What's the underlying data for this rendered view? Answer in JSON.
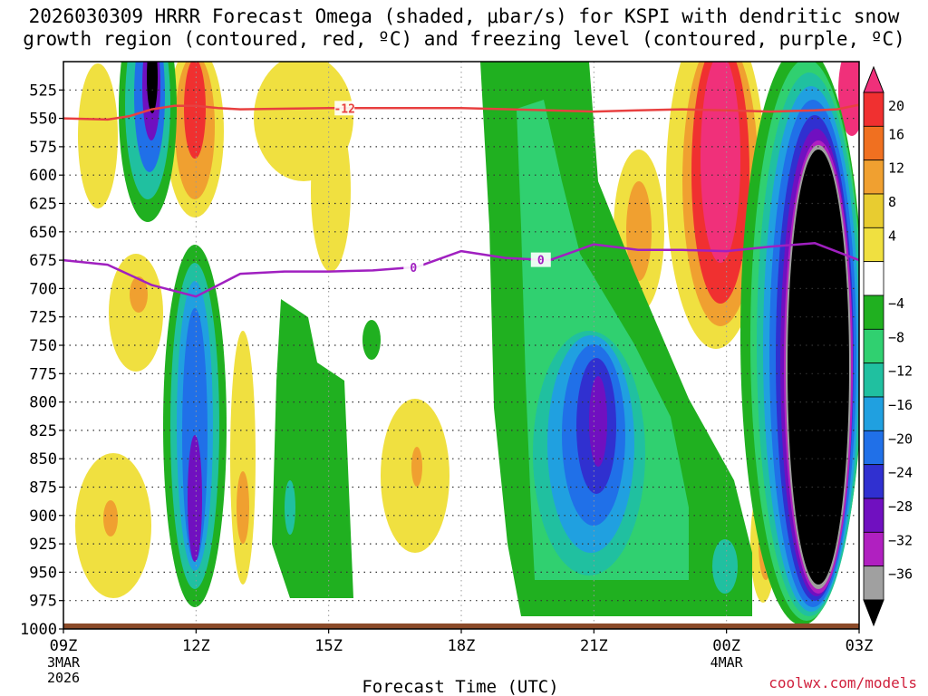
{
  "title_line1": "2026030309 HRRR Forecast Omega (shaded, μbar/s) for KSPI with dendritic snow",
  "title_line2": "growth region (contoured, red, ºC) and freezing level (contoured, purple, ºC)",
  "credit": "coolwx.com/models",
  "chart_data": {
    "type": "heatmap",
    "title": "2026030309 HRRR Forecast Omega (shaded, μbar/s) for KSPI with dendritic snow growth region (contoured, red, ºC) and freezing level (contoured, purple, ºC)",
    "xlabel": "Forecast Time (UTC)",
    "ylabel": "",
    "x_range_hours": [
      0,
      18
    ],
    "x_ticks": [
      {
        "hour": 0,
        "label": "09Z",
        "sub1": "3MAR",
        "sub2": "2026"
      },
      {
        "hour": 3,
        "label": "12Z"
      },
      {
        "hour": 6,
        "label": "15Z"
      },
      {
        "hour": 9,
        "label": "18Z"
      },
      {
        "hour": 12,
        "label": "21Z"
      },
      {
        "hour": 15,
        "label": "00Z",
        "sub1": "4MAR"
      },
      {
        "hour": 18,
        "label": "03Z"
      }
    ],
    "y_range_mb": [
      1000,
      500
    ],
    "y_ticks": [
      "525",
      "550",
      "575",
      "600",
      "625",
      "650",
      "675",
      "700",
      "725",
      "750",
      "775",
      "800",
      "825",
      "850",
      "875",
      "900",
      "925",
      "950",
      "975",
      "1000"
    ],
    "colorbar": {
      "labels": [
        "20",
        "16",
        "12",
        "8",
        "4",
        "−4",
        "−8",
        "−12",
        "−16",
        "−20",
        "−24",
        "−28",
        "−32",
        "−36"
      ],
      "colors": [
        "#f0307a",
        "#f03030",
        "#f07020",
        "#f0a030",
        "#e8cc30",
        "#f0e040",
        "#ffffff",
        "#20b020",
        "#30d070",
        "#20c0a0",
        "#20a0e0",
        "#2070e8",
        "#3030d0",
        "#7010c0",
        "#b020c0",
        "#a0a0a0",
        "#000000"
      ]
    },
    "contours": [
      {
        "name": "dendritic growth -12C",
        "label": "-12",
        "color": "#e84040",
        "points": [
          [
            0,
            550
          ],
          [
            1,
            551
          ],
          [
            1.5,
            548
          ],
          [
            2,
            542
          ],
          [
            2.5,
            539
          ],
          [
            3,
            539
          ],
          [
            3.5,
            541
          ],
          [
            4,
            542
          ],
          [
            6,
            541
          ],
          [
            7,
            541
          ],
          [
            9,
            541
          ],
          [
            11,
            543
          ],
          [
            12,
            544
          ],
          [
            13,
            543
          ],
          [
            14,
            542
          ],
          [
            15,
            543
          ],
          [
            16,
            544
          ],
          [
            17,
            543
          ],
          [
            17.5,
            542
          ],
          [
            18,
            538
          ]
        ]
      },
      {
        "name": "freezing level 0C",
        "label": "0",
        "color": "#a020c0",
        "points": [
          [
            0,
            675
          ],
          [
            1,
            679
          ],
          [
            2,
            697
          ],
          [
            3,
            707
          ],
          [
            4,
            687
          ],
          [
            5,
            685
          ],
          [
            6,
            685
          ],
          [
            7,
            684
          ],
          [
            8,
            681
          ],
          [
            9,
            667
          ],
          [
            10,
            673
          ],
          [
            11,
            675
          ],
          [
            12,
            661
          ],
          [
            13,
            666
          ],
          [
            14,
            666
          ],
          [
            15,
            667
          ],
          [
            16,
            663
          ],
          [
            17,
            660
          ],
          [
            18,
            675
          ]
        ]
      }
    ]
  }
}
